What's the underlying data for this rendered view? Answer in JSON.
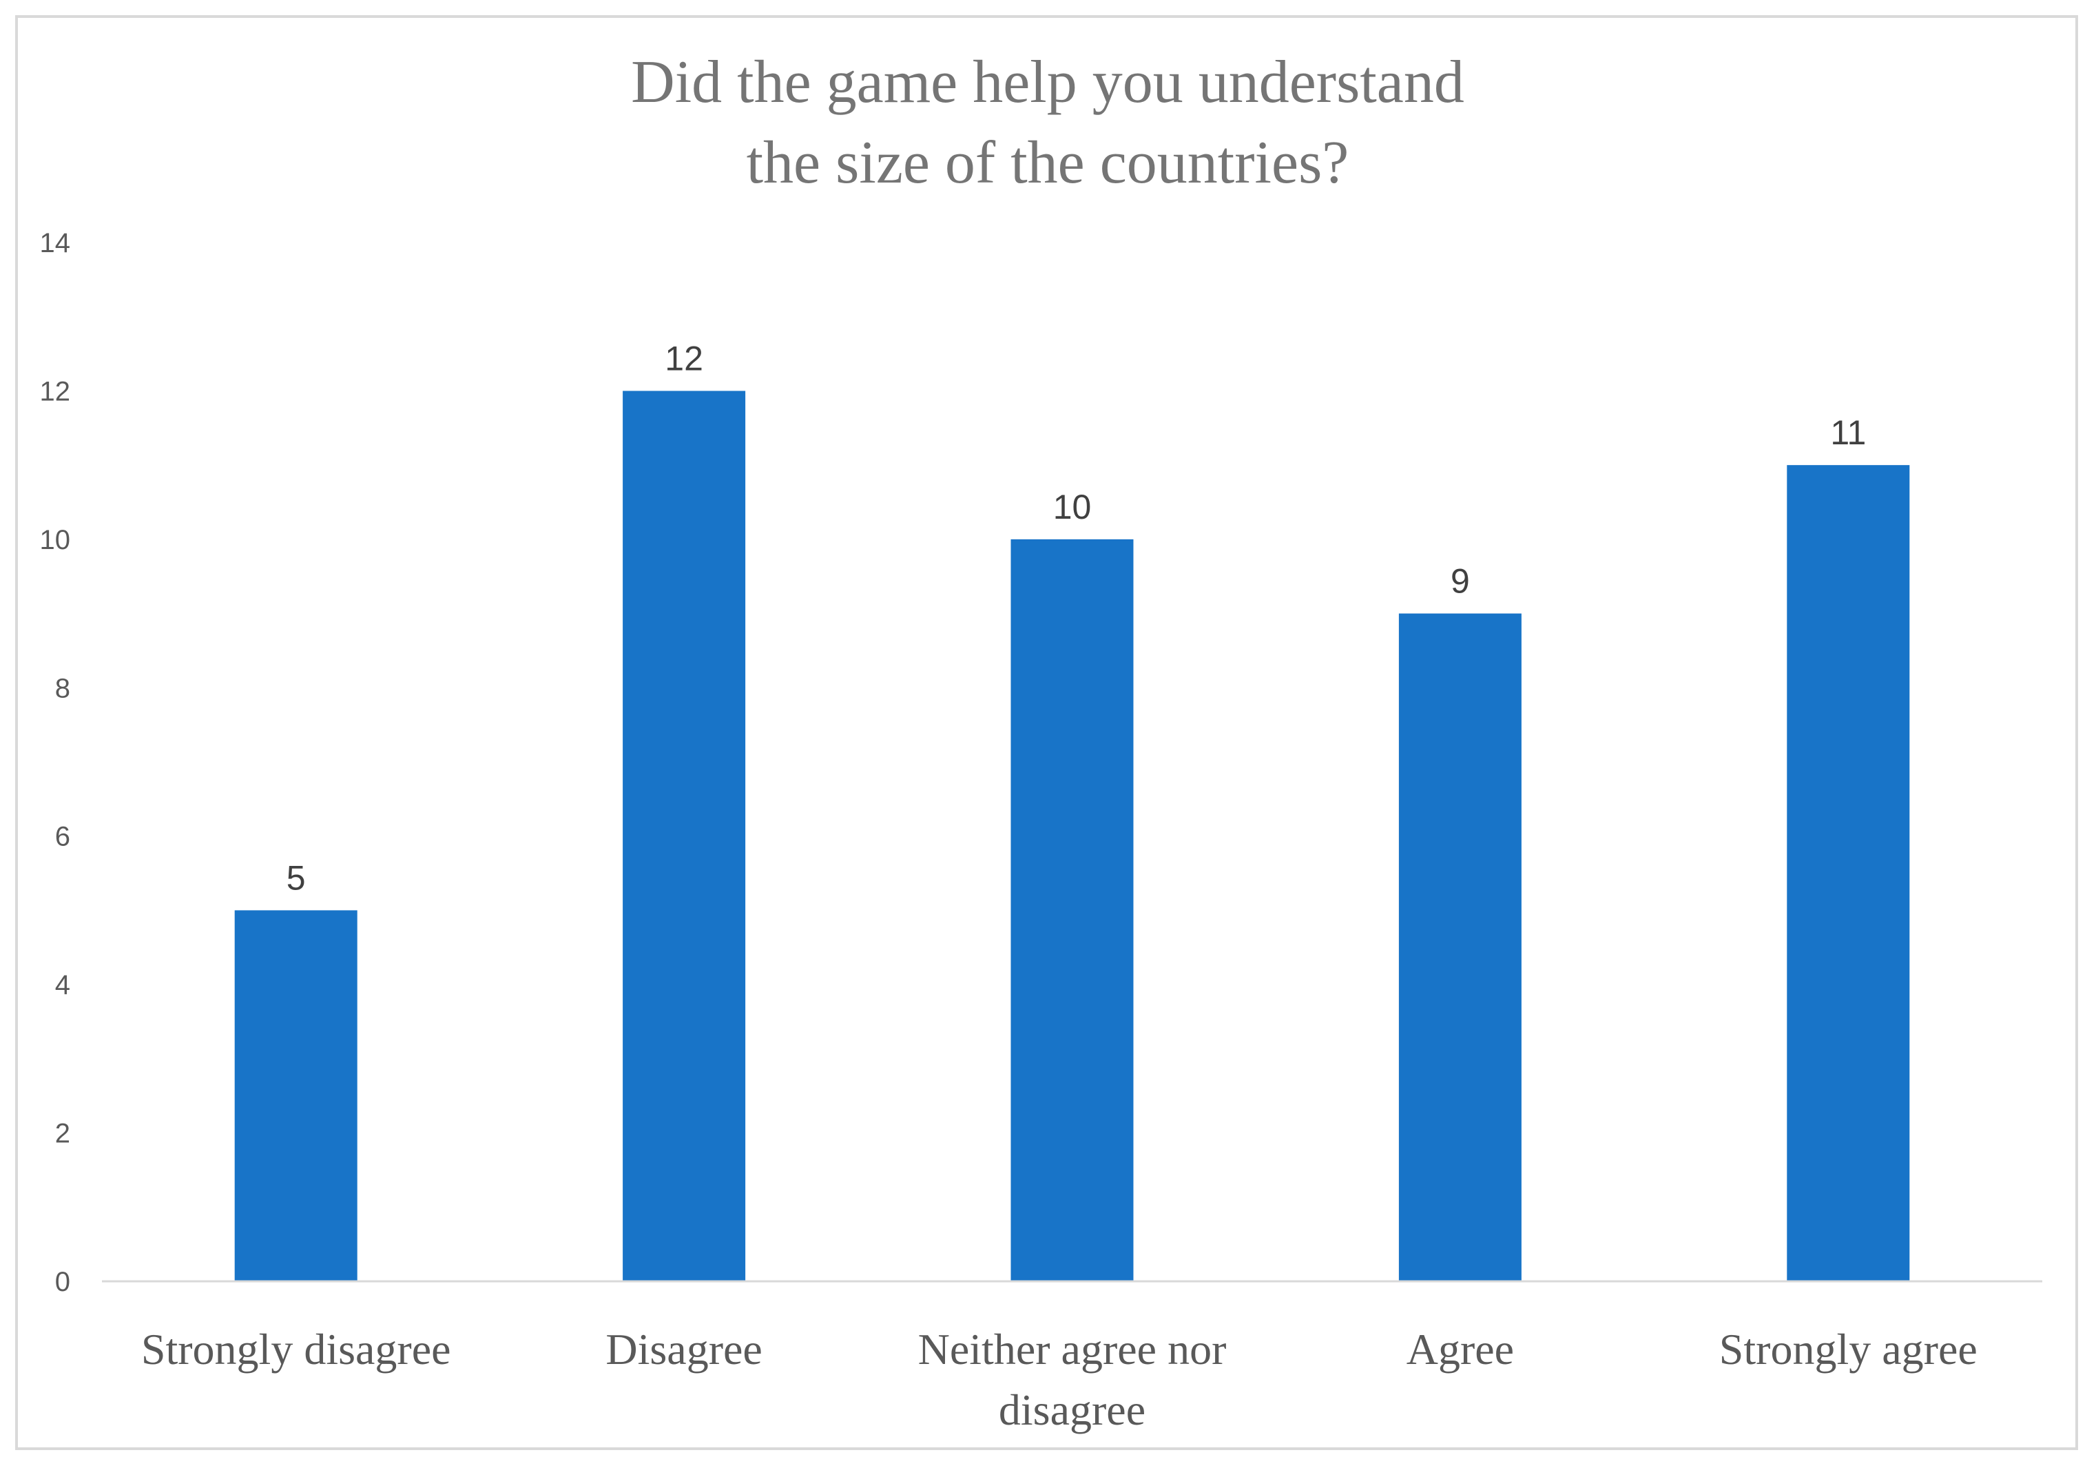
{
  "chart_data": {
    "type": "bar",
    "title_lines": [
      "Did the game help you understand",
      "the size of the countries?"
    ],
    "categories": [
      "Strongly disagree",
      "Disagree",
      "Neither agree nor disagree",
      "Agree",
      "Strongly agree"
    ],
    "category_label_lines": [
      [
        "Strongly disagree"
      ],
      [
        "Disagree"
      ],
      [
        "Neither agree nor",
        "disagree"
      ],
      [
        "Agree"
      ],
      [
        "Strongly agree"
      ]
    ],
    "values": [
      5,
      12,
      10,
      9,
      11
    ],
    "data_labels": [
      "5",
      "12",
      "10",
      "9",
      "11"
    ],
    "ylim": [
      0,
      14
    ],
    "yticks": [
      "0",
      "2",
      "4",
      "6",
      "8",
      "10",
      "12",
      "14"
    ],
    "grid": false,
    "legend": "none",
    "bar_color": "#1874c8",
    "axis_color": "#d9d9d9"
  }
}
